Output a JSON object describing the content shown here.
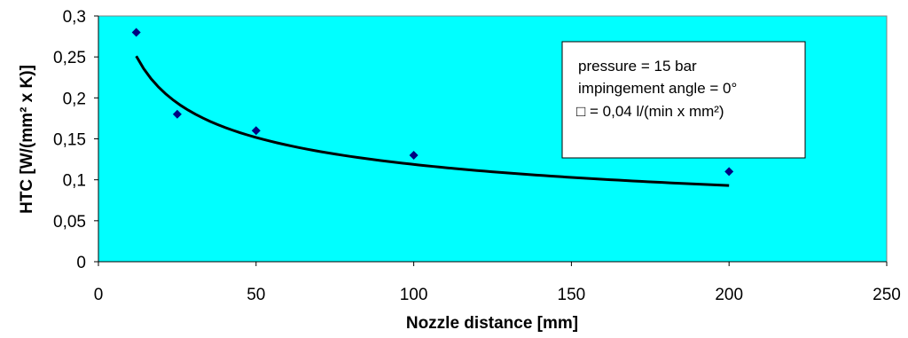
{
  "chart_data": {
    "type": "scatter",
    "title": "",
    "xlabel": "Nozzle distance [mm]",
    "ylabel": "HTC [W/(mm² x K)]",
    "xlim": [
      0,
      250
    ],
    "ylim": [
      0,
      0.3
    ],
    "x_ticks": [
      0,
      50,
      100,
      150,
      200,
      250
    ],
    "y_ticks": [
      0,
      0.05,
      0.1,
      0.15,
      0.2,
      0.25,
      0.3
    ],
    "x_tick_labels": [
      "0",
      "50",
      "100",
      "150",
      "200",
      "250"
    ],
    "y_tick_labels": [
      "0",
      "0,05",
      "0,1",
      "0,15",
      "0,2",
      "0,25",
      "0,3"
    ],
    "plot_background": "#00FFFF",
    "marker_color": "#000080",
    "marker": "diamond",
    "grid": false,
    "series": [
      {
        "x": [
          12,
          25,
          50,
          100,
          200
        ],
        "y": [
          0.28,
          0.18,
          0.16,
          0.13,
          0.11
        ]
      }
    ],
    "trendline": {
      "type": "power",
      "color": "#000000",
      "x_range": [
        12,
        200
      ],
      "points": [
        [
          12,
          0.251
        ],
        [
          200,
          0.093
        ]
      ]
    },
    "annotation": {
      "lines": [
        "pressure = 15 bar",
        "impingement angle = 0°",
        "□  = 0,04 l/(min x mm²)"
      ],
      "placement": "top-right"
    }
  }
}
